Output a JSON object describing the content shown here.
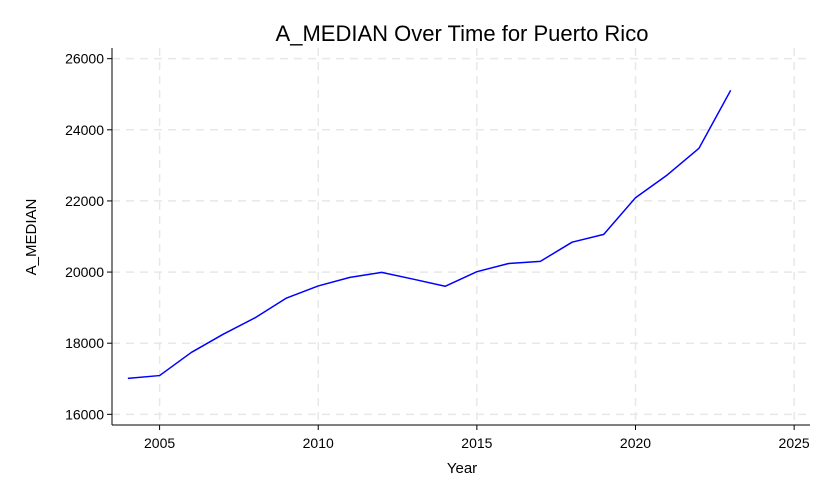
{
  "chart_data": {
    "type": "line",
    "title": "A_MEDIAN Over Time for Puerto Rico",
    "xlabel": "Year",
    "ylabel": "A_MEDIAN",
    "xlim": [
      2003.5,
      2025.5
    ],
    "ylim": [
      15700,
      26300
    ],
    "xticks": [
      2005,
      2010,
      2015,
      2020,
      2025
    ],
    "yticks": [
      16000,
      18000,
      20000,
      22000,
      24000,
      26000
    ],
    "grid": true,
    "series": [
      {
        "color": "#0000ff",
        "x": [
          2004,
          2005,
          2006,
          2007,
          2008,
          2009,
          2010,
          2011,
          2012,
          2013,
          2014,
          2015,
          2016,
          2017,
          2018,
          2019,
          2020,
          2021,
          2022,
          2023
        ],
        "values": [
          17010,
          17090,
          17740,
          18250,
          18710,
          19270,
          19610,
          19850,
          19990,
          19800,
          19600,
          20010,
          20240,
          20300,
          20840,
          21060,
          22090,
          22730,
          23480,
          25110
        ]
      }
    ]
  }
}
